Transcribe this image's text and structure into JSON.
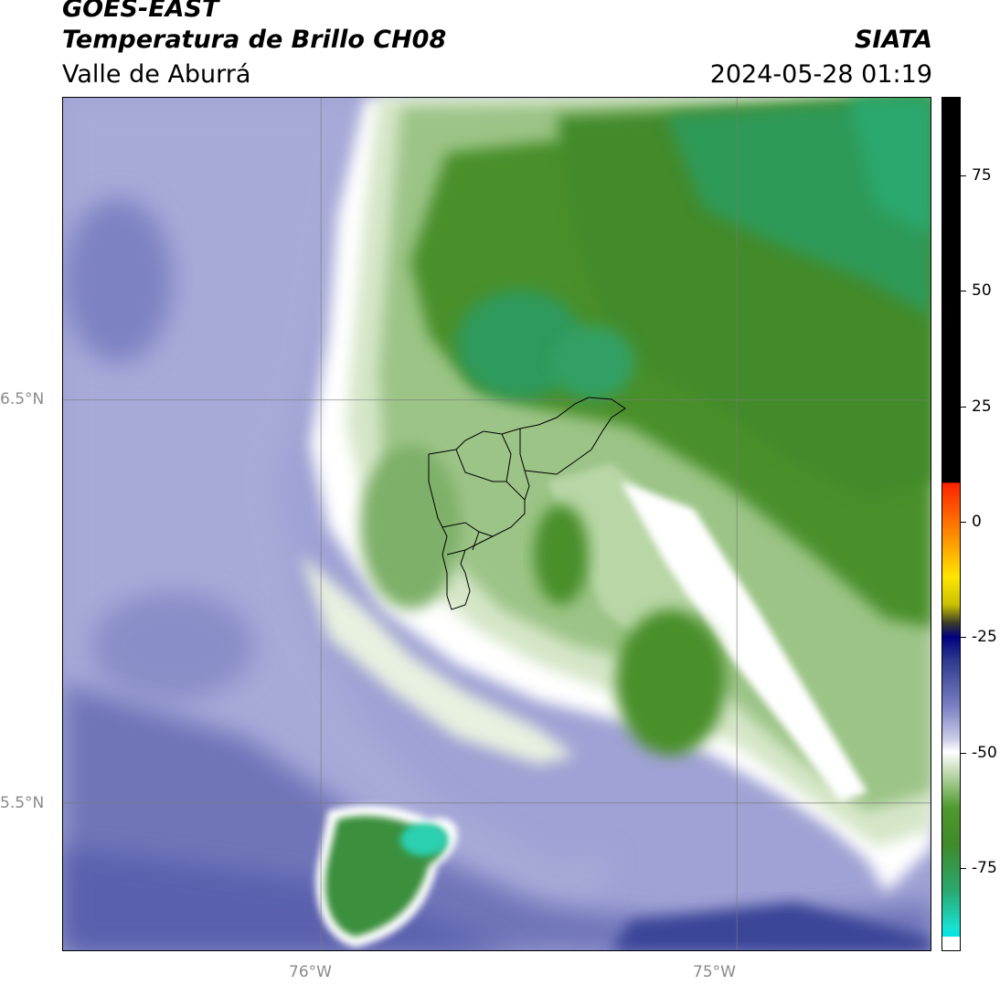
{
  "header": {
    "line1": "GOES-EAST",
    "line2": "Temperatura de Brillo CH08",
    "line3": "Valle de Aburrá",
    "org": "SIATA",
    "timestamp": "2024-05-28 01:19"
  },
  "map": {
    "lon_range": [
      -76.62,
      -74.53
    ],
    "lat_range": [
      5.13,
      7.25
    ],
    "gridlines": {
      "lon": [
        {
          "value": -76,
          "label": "76°W"
        },
        {
          "value": -75,
          "label": "75°W"
        }
      ],
      "lat": [
        {
          "value": 6.5,
          "label": "6.5°N"
        },
        {
          "value": 5.5,
          "label": "5.5°N"
        }
      ]
    },
    "overlay": "municipal boundaries of Valle de Aburrá",
    "colors": {
      "cold": "#2aa86e",
      "green": "#3f8a2a",
      "white": "#ffffff",
      "lavender": "#9b9fd3",
      "navy": "#2c3a8e"
    }
  },
  "colorbar": {
    "range": [
      -93,
      92
    ],
    "ticks": [
      {
        "value": 75,
        "label": "75"
      },
      {
        "value": 50,
        "label": "50"
      },
      {
        "value": 25,
        "label": "25"
      },
      {
        "value": 0,
        "label": "0"
      },
      {
        "value": -25,
        "label": "-25"
      },
      {
        "value": -50,
        "label": "-50"
      },
      {
        "value": -75,
        "label": "-75"
      }
    ],
    "stops": [
      {
        "value": 92,
        "color": "#000000"
      },
      {
        "value": 8.5,
        "color": "#000000"
      },
      {
        "value": 8.4,
        "color": "#ff2200"
      },
      {
        "value": -3,
        "color": "#ff8c00"
      },
      {
        "value": -12,
        "color": "#ffe600"
      },
      {
        "value": -18,
        "color": "#c9c000"
      },
      {
        "value": -22,
        "color": "#3b3b2a"
      },
      {
        "value": -25,
        "color": "#000080"
      },
      {
        "value": -30,
        "color": "#2c3a8e"
      },
      {
        "value": -40,
        "color": "#7a7fc2"
      },
      {
        "value": -47,
        "color": "#c9cbe8"
      },
      {
        "value": -50,
        "color": "#ffffff"
      },
      {
        "value": -55,
        "color": "#b8d6a6"
      },
      {
        "value": -62,
        "color": "#4f9a2e"
      },
      {
        "value": -70,
        "color": "#3f8a2a"
      },
      {
        "value": -80,
        "color": "#2aa86e"
      },
      {
        "value": -88,
        "color": "#18e0d0"
      },
      {
        "value": -90,
        "color": "#00e5e5"
      },
      {
        "value": -90.1,
        "color": "#ffffff"
      },
      {
        "value": -93,
        "color": "#ffffff"
      }
    ]
  }
}
